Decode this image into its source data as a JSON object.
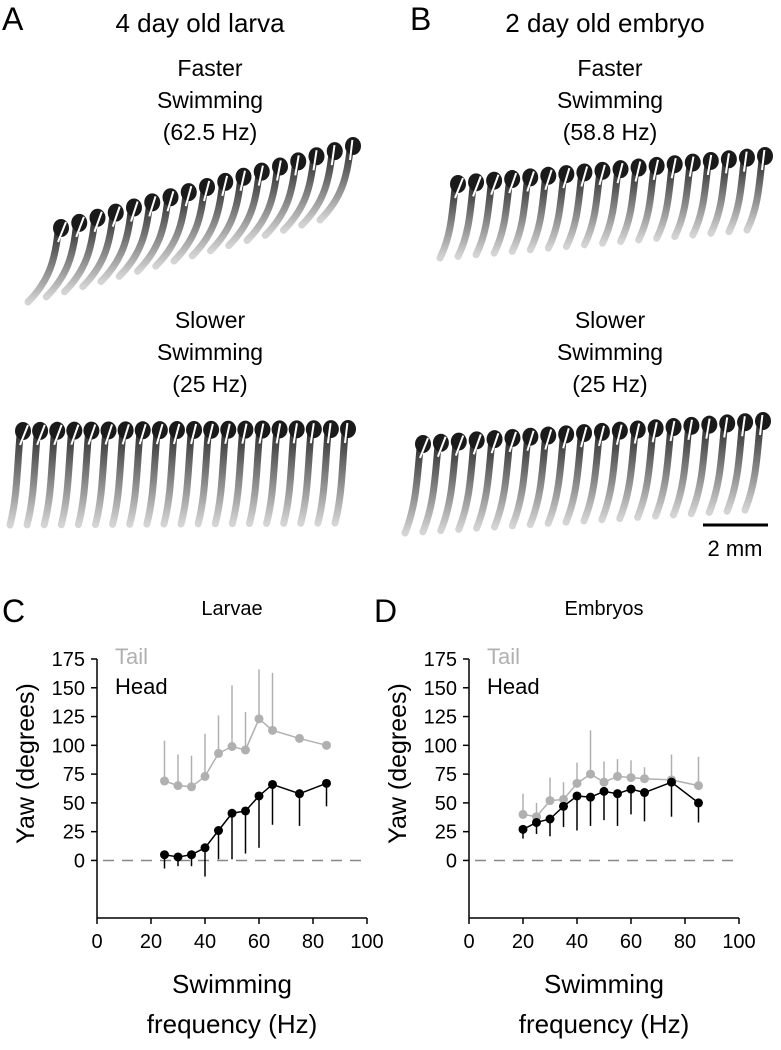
{
  "panels": [
    {
      "letter": "A",
      "title": "4 day old larva",
      "fast": [
        "Faster",
        "Swimming",
        "(62.5 Hz)"
      ],
      "slow": [
        "Slower",
        "Swimming",
        "(25 Hz)"
      ]
    },
    {
      "letter": "B",
      "title": "2 day old embryo",
      "fast": [
        "Faster",
        "Swimming",
        "(58.8 Hz)"
      ],
      "slow": [
        "Slower",
        "Swimming",
        "(25 Hz)"
      ]
    }
  ],
  "scale_bar": "2 mm",
  "chart_data": [
    {
      "type": "line",
      "letter": "C",
      "title": "Larvae",
      "ylabel": "Yaw (degrees)",
      "xlabel": [
        "Swimming",
        "frequency (Hz)"
      ],
      "xlim": [
        0,
        100
      ],
      "xticks": [
        0,
        20,
        40,
        60,
        80,
        100
      ],
      "ylim": [
        -50,
        175
      ],
      "yticks": [
        0,
        25,
        50,
        75,
        100,
        125,
        150,
        175
      ],
      "reference_line": 0,
      "legend": "upper left",
      "x": [
        25,
        30,
        35,
        40,
        45,
        50,
        55,
        60,
        65,
        75,
        85
      ],
      "series": [
        {
          "name": "Tail",
          "color": "#b0b0b0",
          "error_direction": "up",
          "values": [
            69,
            65,
            64,
            73,
            93,
            99,
            96,
            123,
            113,
            106,
            100
          ],
          "errors": [
            35,
            27,
            27,
            37,
            33,
            53,
            33,
            43,
            50,
            0,
            0
          ]
        },
        {
          "name": "Head",
          "color": "#000000",
          "error_direction": "down",
          "values": [
            5,
            3,
            5,
            11,
            26,
            41,
            43,
            56,
            66,
            58,
            67
          ],
          "errors": [
            12,
            8,
            10,
            25,
            25,
            40,
            37,
            45,
            35,
            28,
            20
          ]
        }
      ]
    },
    {
      "type": "line",
      "letter": "D",
      "title": "Embryos",
      "ylabel": "Yaw (degrees)",
      "xlabel": [
        "Swimming",
        "frequency (Hz)"
      ],
      "xlim": [
        0,
        100
      ],
      "xticks": [
        0,
        20,
        40,
        60,
        80,
        100
      ],
      "ylim": [
        -50,
        175
      ],
      "yticks": [
        0,
        25,
        50,
        75,
        100,
        125,
        150,
        175
      ],
      "reference_line": 0,
      "legend": "upper left",
      "x": [
        20,
        25,
        30,
        35,
        40,
        45,
        50,
        55,
        60,
        65,
        75,
        85
      ],
      "series": [
        {
          "name": "Tail",
          "color": "#b0b0b0",
          "error_direction": "up",
          "values": [
            40,
            38,
            52,
            53,
            67,
            75,
            68,
            73,
            72,
            71,
            70,
            65
          ],
          "errors": [
            18,
            12,
            20,
            15,
            18,
            38,
            18,
            15,
            15,
            10,
            22,
            25
          ]
        },
        {
          "name": "Head",
          "color": "#000000",
          "error_direction": "down",
          "values": [
            27,
            33,
            36,
            47,
            56,
            55,
            60,
            58,
            62,
            59,
            68,
            50
          ],
          "errors": [
            8,
            10,
            15,
            18,
            30,
            25,
            25,
            28,
            22,
            25,
            30,
            17
          ]
        }
      ]
    }
  ]
}
